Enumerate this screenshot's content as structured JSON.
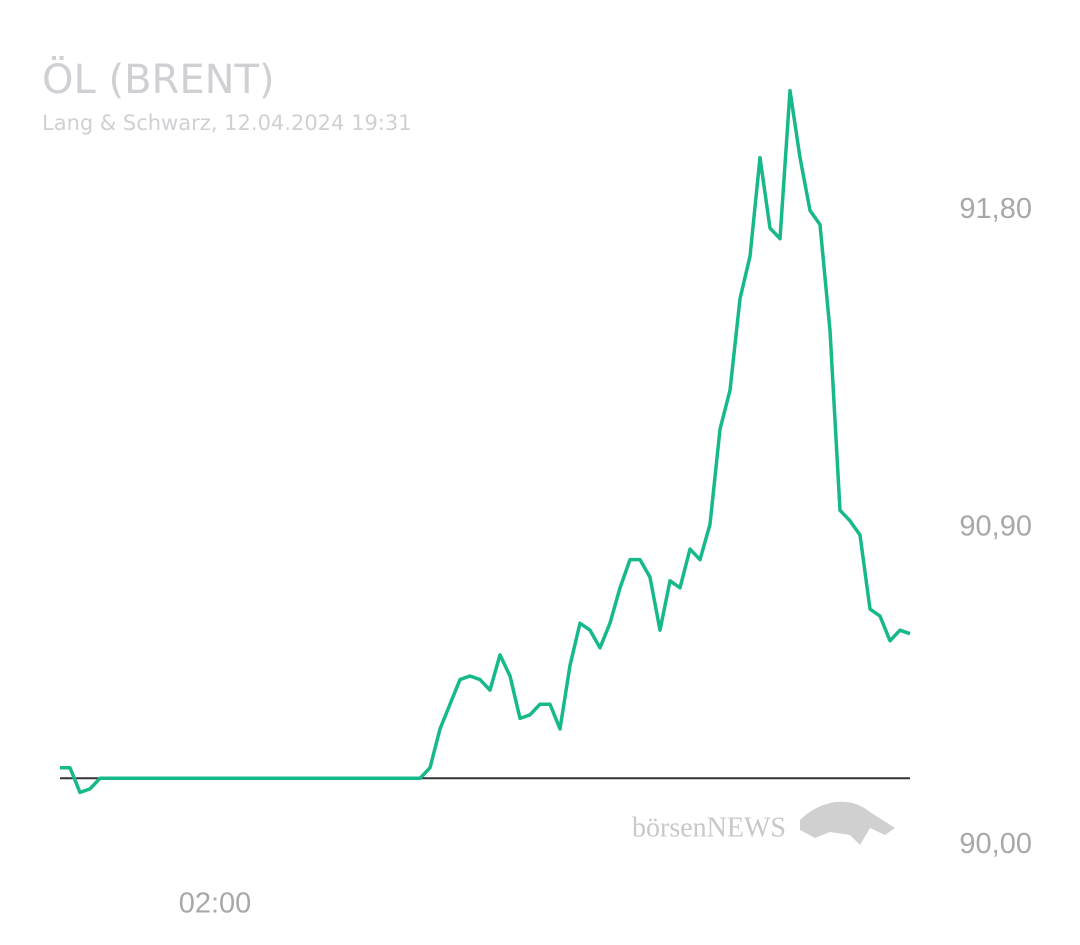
{
  "chart_data": {
    "type": "line",
    "title": "ÖL (BRENT)",
    "subtitle": "Lang & Schwarz, 12.04.2024 19:31",
    "watermark": "börsenNEWS",
    "series": [
      {
        "name": "Brent",
        "color": "#17b98a",
        "values": [
          90.22,
          90.22,
          90.15,
          90.16,
          90.19,
          90.19,
          90.19,
          90.19,
          90.19,
          90.19,
          90.19,
          90.19,
          90.19,
          90.19,
          90.19,
          90.19,
          90.19,
          90.19,
          90.19,
          90.19,
          90.19,
          90.19,
          90.19,
          90.19,
          90.19,
          90.19,
          90.19,
          90.19,
          90.19,
          90.19,
          90.19,
          90.19,
          90.19,
          90.19,
          90.19,
          90.19,
          90.19,
          90.22,
          90.33,
          90.4,
          90.47,
          90.48,
          90.47,
          90.44,
          90.54,
          90.48,
          90.36,
          90.37,
          90.4,
          90.4,
          90.33,
          90.51,
          90.63,
          90.61,
          90.56,
          90.63,
          90.73,
          90.81,
          90.81,
          90.76,
          90.61,
          90.75,
          90.73,
          90.84,
          90.81,
          90.91,
          91.18,
          91.29,
          91.55,
          91.67,
          91.95,
          91.75,
          91.72,
          92.14,
          91.95,
          91.8,
          91.76,
          91.46,
          90.95,
          90.92,
          90.88,
          90.67,
          90.65,
          90.58,
          90.61,
          90.6
        ]
      }
    ],
    "baseline": 90.19,
    "xlim": [
      0,
      85
    ],
    "xticks": [
      {
        "value": 15.5,
        "label": "02:00"
      }
    ],
    "ylim": [
      89.93,
      92.17
    ],
    "yticks": [
      {
        "value": 90.0,
        "label": "90,00"
      },
      {
        "value": 90.9,
        "label": "90,90"
      },
      {
        "value": 91.8,
        "label": "91,80"
      }
    ]
  }
}
